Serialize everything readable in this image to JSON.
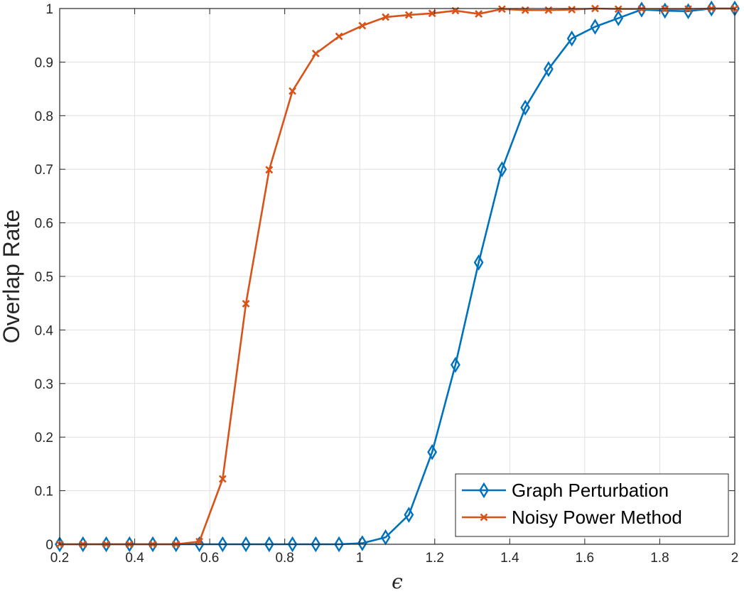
{
  "chart_data": {
    "type": "line",
    "title": "",
    "xlabel": "ϵ",
    "ylabel": "Overlap Rate",
    "xlim": [
      0.2,
      2
    ],
    "ylim": [
      0,
      1
    ],
    "grid": true,
    "legend_position": "bottom-right",
    "xticks": [
      "0.2",
      "0.4",
      "0.6",
      "0.8",
      "1",
      "1.2",
      "1.4",
      "1.6",
      "1.8",
      "2"
    ],
    "yticks": [
      "0",
      "0.1",
      "0.2",
      "0.3",
      "0.4",
      "0.5",
      "0.6",
      "0.7",
      "0.8",
      "0.9",
      "1"
    ],
    "x": [
      0.2,
      0.2621,
      0.3241,
      0.3862,
      0.4483,
      0.5103,
      0.5724,
      0.6345,
      0.6966,
      0.7586,
      0.8207,
      0.8828,
      0.9448,
      1.0069,
      1.069,
      1.131,
      1.1931,
      1.2552,
      1.3172,
      1.3793,
      1.4414,
      1.5034,
      1.5655,
      1.6276,
      1.6897,
      1.7517,
      1.8138,
      1.8759,
      1.9379,
      2.0
    ],
    "series": [
      {
        "name": "Graph Perturbation",
        "color": "#0072BD",
        "marker": "diamond",
        "values": [
          0,
          0,
          0,
          0,
          0,
          0,
          0,
          0,
          0,
          0,
          0,
          0,
          0,
          0.002,
          0.013,
          0.055,
          0.172,
          0.335,
          0.526,
          0.7,
          0.815,
          0.887,
          0.944,
          0.966,
          0.982,
          0.998,
          0.996,
          0.995,
          1.0,
          1.0
        ]
      },
      {
        "name": "Noisy Power Method",
        "color": "#D95319",
        "marker": "x",
        "values": [
          0,
          0,
          0,
          0,
          0,
          0,
          0.005,
          0.122,
          0.449,
          0.699,
          0.846,
          0.916,
          0.948,
          0.968,
          0.984,
          0.988,
          0.991,
          0.996,
          0.99,
          0.999,
          0.997,
          0.997,
          0.998,
          1.0,
          0.999,
          0.999,
          0.999,
          0.999,
          1.0,
          1.0
        ]
      }
    ]
  }
}
